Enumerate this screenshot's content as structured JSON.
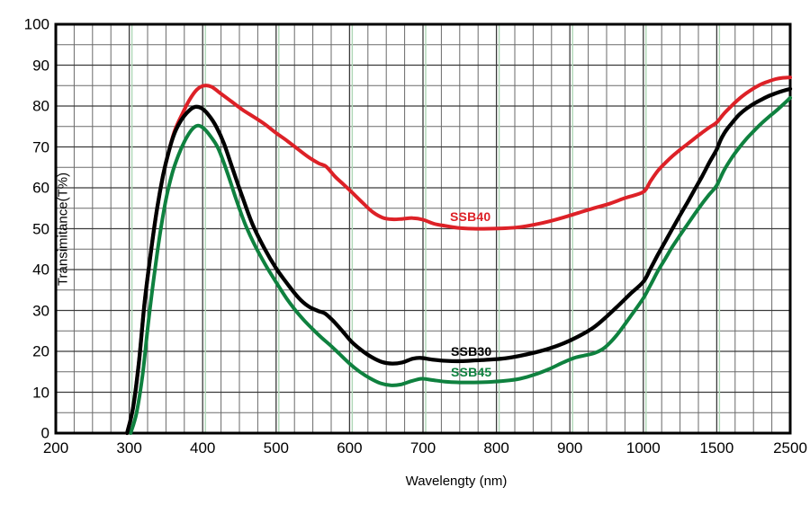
{
  "chart_data": {
    "type": "line",
    "title": "",
    "xlabel": "Wavelengty (nm)",
    "ylabel": "Transimitance(T%)",
    "x_tick_labels": [
      "200",
      "300",
      "400",
      "500",
      "600",
      "700",
      "800",
      "900",
      "1000",
      "1500",
      "2500"
    ],
    "x_tick_values": [
      200,
      300,
      400,
      500,
      600,
      700,
      800,
      900,
      1000,
      1500,
      2500
    ],
    "x_scale_note": "piecewise linear: equal pixel spacing between consecutive labeled ticks, 3 minor grid divisions inside each interval",
    "y_tick_labels": [
      "0",
      "10",
      "20",
      "30",
      "40",
      "50",
      "60",
      "70",
      "80",
      "90",
      "100"
    ],
    "y_tick_values": [
      0,
      10,
      20,
      30,
      40,
      50,
      60,
      70,
      80,
      90,
      100
    ],
    "ylim": [
      0,
      100
    ],
    "grid": {
      "on": true,
      "minor_step_y": 5,
      "minor_color": "#6a6a6a",
      "major_color": "#3a3a3a",
      "green_guide_color": "#aed7b6",
      "green_guide_ticks": [
        300,
        400,
        500,
        600,
        700,
        800,
        900,
        1000,
        1500
      ],
      "border_color": "#000000"
    },
    "legend_position": "inline-annotations",
    "series": [
      {
        "name": "SSB40",
        "color": "#dd2127",
        "points": [
          [
            297,
            0
          ],
          [
            305,
            6
          ],
          [
            313,
            17
          ],
          [
            321,
            32
          ],
          [
            330,
            45
          ],
          [
            338,
            55
          ],
          [
            346,
            63
          ],
          [
            354,
            69
          ],
          [
            362,
            74
          ],
          [
            372,
            78
          ],
          [
            382,
            81.5
          ],
          [
            392,
            84
          ],
          [
            402,
            85
          ],
          [
            412,
            84.7
          ],
          [
            425,
            83
          ],
          [
            440,
            81
          ],
          [
            455,
            79
          ],
          [
            470,
            77.3
          ],
          [
            485,
            75.5
          ],
          [
            500,
            73.4
          ],
          [
            515,
            71.5
          ],
          [
            530,
            69.4
          ],
          [
            545,
            67.4
          ],
          [
            558,
            66
          ],
          [
            568,
            65.2
          ],
          [
            580,
            62.8
          ],
          [
            592,
            60.8
          ],
          [
            605,
            58.6
          ],
          [
            618,
            56.3
          ],
          [
            632,
            54
          ],
          [
            645,
            52.7
          ],
          [
            658,
            52.3
          ],
          [
            672,
            52.4
          ],
          [
            686,
            52.6
          ],
          [
            700,
            52.2
          ],
          [
            715,
            51.2
          ],
          [
            730,
            50.7
          ],
          [
            748,
            50.2
          ],
          [
            768,
            50
          ],
          [
            790,
            50
          ],
          [
            812,
            50.1
          ],
          [
            832,
            50.4
          ],
          [
            852,
            51
          ],
          [
            872,
            51.8
          ],
          [
            892,
            52.8
          ],
          [
            912,
            53.9
          ],
          [
            932,
            55
          ],
          [
            952,
            56
          ],
          [
            975,
            57.5
          ],
          [
            1000,
            59
          ],
          [
            1050,
            61.7
          ],
          [
            1100,
            64.2
          ],
          [
            1150,
            66.1
          ],
          [
            1200,
            67.8
          ],
          [
            1250,
            69.3
          ],
          [
            1300,
            70.7
          ],
          [
            1350,
            72.1
          ],
          [
            1400,
            73.5
          ],
          [
            1450,
            74.8
          ],
          [
            1500,
            76
          ],
          [
            1600,
            78.2
          ],
          [
            1700,
            80
          ],
          [
            1800,
            81.7
          ],
          [
            1900,
            83.1
          ],
          [
            2000,
            84.3
          ],
          [
            2100,
            85.3
          ],
          [
            2200,
            86
          ],
          [
            2300,
            86.6
          ],
          [
            2400,
            86.9
          ],
          [
            2500,
            87
          ]
        ]
      },
      {
        "name": "SSB45",
        "color": "#0f813f",
        "points": [
          [
            302,
            0
          ],
          [
            310,
            5
          ],
          [
            318,
            14
          ],
          [
            326,
            27
          ],
          [
            335,
            40
          ],
          [
            343,
            50
          ],
          [
            351,
            58
          ],
          [
            359,
            63.8
          ],
          [
            367,
            68
          ],
          [
            376,
            71.6
          ],
          [
            385,
            74.2
          ],
          [
            393,
            75.2
          ],
          [
            401,
            74.6
          ],
          [
            411,
            72.5
          ],
          [
            421,
            69.7
          ],
          [
            433,
            64
          ],
          [
            445,
            57.5
          ],
          [
            457,
            51.5
          ],
          [
            470,
            46.3
          ],
          [
            485,
            41.3
          ],
          [
            500,
            36.9
          ],
          [
            514,
            33
          ],
          [
            527,
            29.9
          ],
          [
            539,
            27.4
          ],
          [
            550,
            25.4
          ],
          [
            561,
            23.5
          ],
          [
            573,
            21.6
          ],
          [
            586,
            19.4
          ],
          [
            600,
            17
          ],
          [
            614,
            15
          ],
          [
            628,
            13.4
          ],
          [
            642,
            12.2
          ],
          [
            656,
            11.7
          ],
          [
            670,
            11.9
          ],
          [
            684,
            12.7
          ],
          [
            698,
            13.3
          ],
          [
            712,
            13
          ],
          [
            730,
            12.6
          ],
          [
            750,
            12.4
          ],
          [
            770,
            12.4
          ],
          [
            790,
            12.5
          ],
          [
            812,
            12.8
          ],
          [
            832,
            13.3
          ],
          [
            852,
            14.3
          ],
          [
            872,
            15.7
          ],
          [
            890,
            17.2
          ],
          [
            906,
            18.4
          ],
          [
            920,
            19
          ],
          [
            934,
            19.6
          ],
          [
            948,
            21
          ],
          [
            964,
            24
          ],
          [
            982,
            28.4
          ],
          [
            1000,
            33
          ],
          [
            1050,
            36.3
          ],
          [
            1100,
            39.7
          ],
          [
            1150,
            42.7
          ],
          [
            1200,
            45.7
          ],
          [
            1250,
            48.4
          ],
          [
            1300,
            51
          ],
          [
            1350,
            53.6
          ],
          [
            1400,
            56.1
          ],
          [
            1450,
            58.4
          ],
          [
            1500,
            60.6
          ],
          [
            1600,
            64.3
          ],
          [
            1700,
            67.2
          ],
          [
            1800,
            69.7
          ],
          [
            1900,
            71.9
          ],
          [
            2000,
            73.8
          ],
          [
            2100,
            75.6
          ],
          [
            2200,
            77.2
          ],
          [
            2300,
            78.7
          ],
          [
            2400,
            80.3
          ],
          [
            2500,
            82
          ]
        ]
      },
      {
        "name": "SSB30",
        "color": "#000000",
        "points": [
          [
            297,
            0
          ],
          [
            305,
            6
          ],
          [
            313,
            17
          ],
          [
            321,
            32
          ],
          [
            330,
            45
          ],
          [
            338,
            55
          ],
          [
            346,
            63
          ],
          [
            354,
            69
          ],
          [
            362,
            73.5
          ],
          [
            371,
            76.6
          ],
          [
            381,
            78.8
          ],
          [
            390,
            79.8
          ],
          [
            399,
            79.4
          ],
          [
            409,
            77.6
          ],
          [
            419,
            74.8
          ],
          [
            429,
            70.8
          ],
          [
            441,
            64.5
          ],
          [
            454,
            57.8
          ],
          [
            468,
            51
          ],
          [
            484,
            45.2
          ],
          [
            500,
            40.3
          ],
          [
            515,
            36.6
          ],
          [
            530,
            33.2
          ],
          [
            544,
            31
          ],
          [
            557,
            29.9
          ],
          [
            567,
            29.2
          ],
          [
            579,
            27.2
          ],
          [
            591,
            24.8
          ],
          [
            603,
            22.3
          ],
          [
            616,
            20.3
          ],
          [
            630,
            18.6
          ],
          [
            644,
            17.4
          ],
          [
            658,
            17
          ],
          [
            672,
            17.3
          ],
          [
            686,
            18.2
          ],
          [
            697,
            18.4
          ],
          [
            712,
            18
          ],
          [
            730,
            17.7
          ],
          [
            752,
            17.6
          ],
          [
            772,
            17.8
          ],
          [
            792,
            18
          ],
          [
            812,
            18.3
          ],
          [
            832,
            18.9
          ],
          [
            852,
            19.7
          ],
          [
            872,
            20.7
          ],
          [
            892,
            22
          ],
          [
            912,
            23.7
          ],
          [
            932,
            25.8
          ],
          [
            950,
            28.5
          ],
          [
            966,
            31.2
          ],
          [
            982,
            34
          ],
          [
            1000,
            37
          ],
          [
            1050,
            40.3
          ],
          [
            1100,
            43.7
          ],
          [
            1150,
            46.9
          ],
          [
            1200,
            50.1
          ],
          [
            1250,
            53.3
          ],
          [
            1300,
            56.4
          ],
          [
            1350,
            59.6
          ],
          [
            1400,
            62.8
          ],
          [
            1450,
            66.2
          ],
          [
            1500,
            69.4
          ],
          [
            1550,
            71.6
          ],
          [
            1600,
            73.3
          ],
          [
            1650,
            74.6
          ],
          [
            1700,
            75.7
          ],
          [
            1800,
            77.8
          ],
          [
            1900,
            79.3
          ],
          [
            2000,
            80.5
          ],
          [
            2100,
            81.5
          ],
          [
            2200,
            82.4
          ],
          [
            2300,
            83.1
          ],
          [
            2400,
            83.7
          ],
          [
            2500,
            84.2
          ]
        ]
      }
    ],
    "annotations": [
      {
        "text": "SSB40",
        "color": "#dd2127",
        "x": 500,
        "y": 233
      },
      {
        "text": "SSB30",
        "color": "#000000",
        "x": 501,
        "y": 383
      },
      {
        "text": "SSB45",
        "color": "#0f813f",
        "x": 501,
        "y": 406
      }
    ]
  },
  "axes": {
    "xlabel": "Wavelengty (nm)",
    "ylabel": "Transimitance(T%)"
  }
}
